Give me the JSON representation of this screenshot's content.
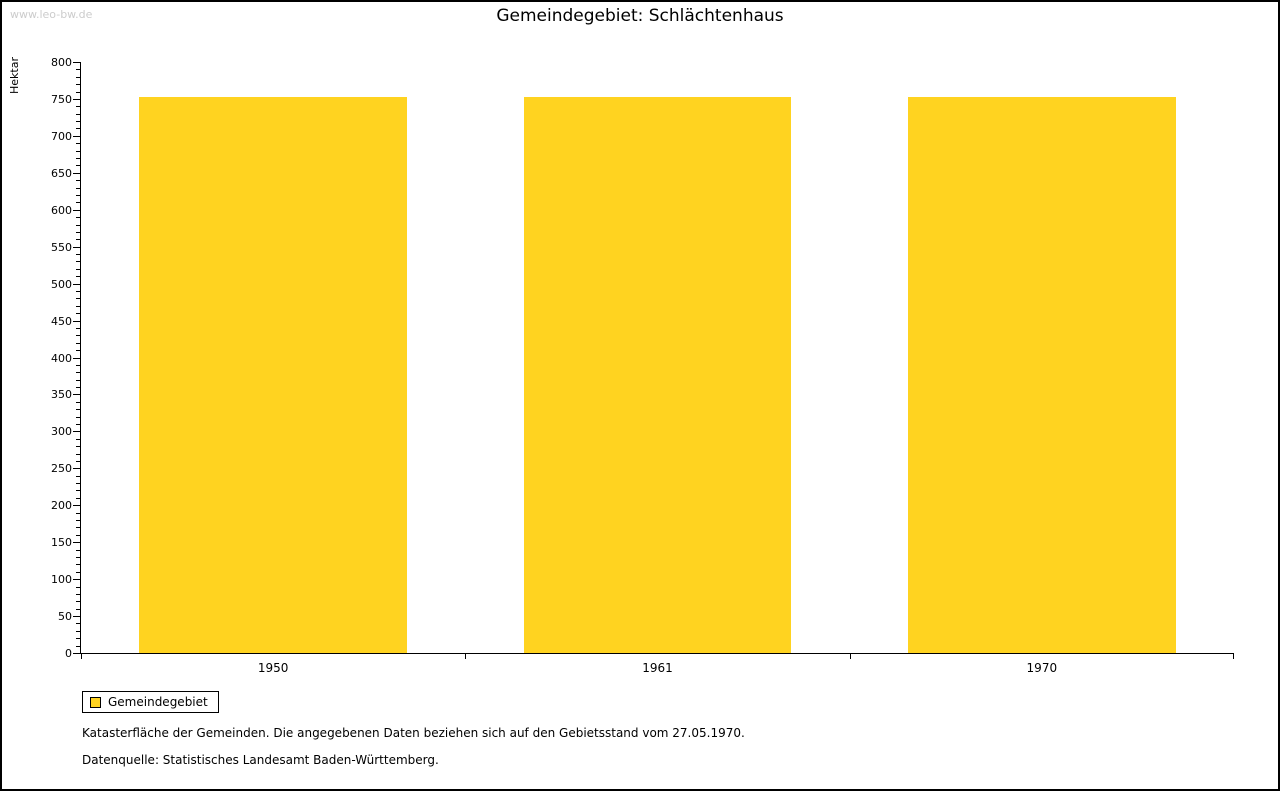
{
  "watermark": "www.leo-bw.de",
  "title": "Gemeindegebiet: Schlächtenhaus",
  "chart_data": {
    "type": "bar",
    "title": "Gemeindegebiet: Schlächtenhaus",
    "categories": [
      "1950",
      "1961",
      "1970"
    ],
    "series": [
      {
        "name": "Gemeindegebiet",
        "values": [
          752,
          752,
          752
        ]
      }
    ],
    "xlabel": "",
    "ylabel": "Hektar",
    "ylim": [
      0,
      800
    ],
    "y_major_step": 50,
    "y_minor_step": 10,
    "bar_color": "#ffd320",
    "grid": false,
    "legend_position": "bottom-left"
  },
  "legend": {
    "items": [
      {
        "label": "Gemeindegebiet",
        "color": "#ffd320"
      }
    ]
  },
  "footnotes": [
    "Katasterfläche der Gemeinden. Die angegebenen Daten beziehen sich auf den Gebietsstand vom 27.05.1970.",
    "Datenquelle: Statistisches Landesamt Baden-Württemberg."
  ]
}
